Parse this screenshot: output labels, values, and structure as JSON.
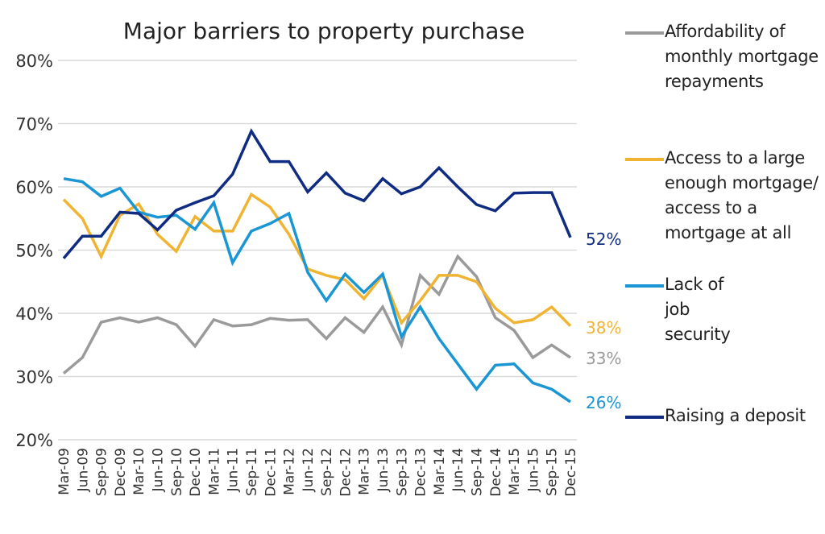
{
  "chart_data": {
    "type": "line",
    "title": "Major barriers to property purchase",
    "xlabel": "",
    "ylabel": "",
    "ylim": [
      20,
      80
    ],
    "yticks": [
      "20%",
      "30%",
      "40%",
      "50%",
      "60%",
      "70%",
      "80%"
    ],
    "y_tick_values": [
      20,
      30,
      40,
      50,
      60,
      70,
      80
    ],
    "grid": "horizontal",
    "legend_position": "right",
    "categories": [
      "Mar-09",
      "Jun-09",
      "Sep-09",
      "Dec-09",
      "Mar-10",
      "Jun-10",
      "Sep-10",
      "Dec-10",
      "Mar-11",
      "Jun-11",
      "Sep-11",
      "Dec-11",
      "Mar-12",
      "Jun-12",
      "Sep-12",
      "Dec-12",
      "Mar-13",
      "Jun-13",
      "Sep-13",
      "Dec-13",
      "Mar-14",
      "Jun-14",
      "Sep-14",
      "Dec-14",
      "Mar-15",
      "Jun-15",
      "Sep-15",
      "Dec-15"
    ],
    "series": [
      {
        "name": "Affordability of monthly mortgage repayments",
        "color": "#9a9a9a",
        "end_label": "33%",
        "values": [
          30.5,
          33,
          38.6,
          39.3,
          38.6,
          39.3,
          38.2,
          34.8,
          39,
          38,
          38.2,
          39.2,
          38.9,
          39,
          36,
          39.3,
          37,
          41,
          35,
          46,
          43,
          49,
          45.8,
          39.3,
          37.3,
          33,
          35,
          33
        ]
      },
      {
        "name": "Access to a large enough mortgage/ access to a mortgage at all",
        "color": "#f0b432",
        "end_label": "38%",
        "values": [
          58,
          55,
          49,
          55.5,
          57.3,
          52.5,
          49.8,
          55.3,
          53,
          53,
          58.8,
          56.8,
          52.5,
          47,
          46,
          45.3,
          42.3,
          46,
          38.5,
          42,
          46,
          46,
          45,
          40.8,
          38.5,
          39,
          41,
          38
        ]
      },
      {
        "name": "Lack of job security",
        "color": "#1a96d4",
        "end_label": "26%",
        "values": [
          61.3,
          60.8,
          58.5,
          59.8,
          56,
          55.2,
          55.5,
          53.3,
          57.5,
          48,
          53,
          54.2,
          55.8,
          46.5,
          42,
          46.2,
          43.3,
          46.2,
          36.3,
          41,
          36,
          32,
          28,
          31.8,
          32,
          29,
          28,
          26
        ]
      },
      {
        "name": "Raising a deposit",
        "color": "#0f2c82",
        "end_label": "52%",
        "values": [
          48.7,
          52.2,
          52.2,
          56,
          55.8,
          53.2,
          56.3,
          57.5,
          58.6,
          62,
          68.8,
          64,
          64,
          59.2,
          62.2,
          59,
          57.8,
          61.3,
          58.9,
          60,
          63,
          60,
          57.2,
          56.2,
          59,
          59.1,
          59.1,
          52
        ]
      }
    ]
  }
}
